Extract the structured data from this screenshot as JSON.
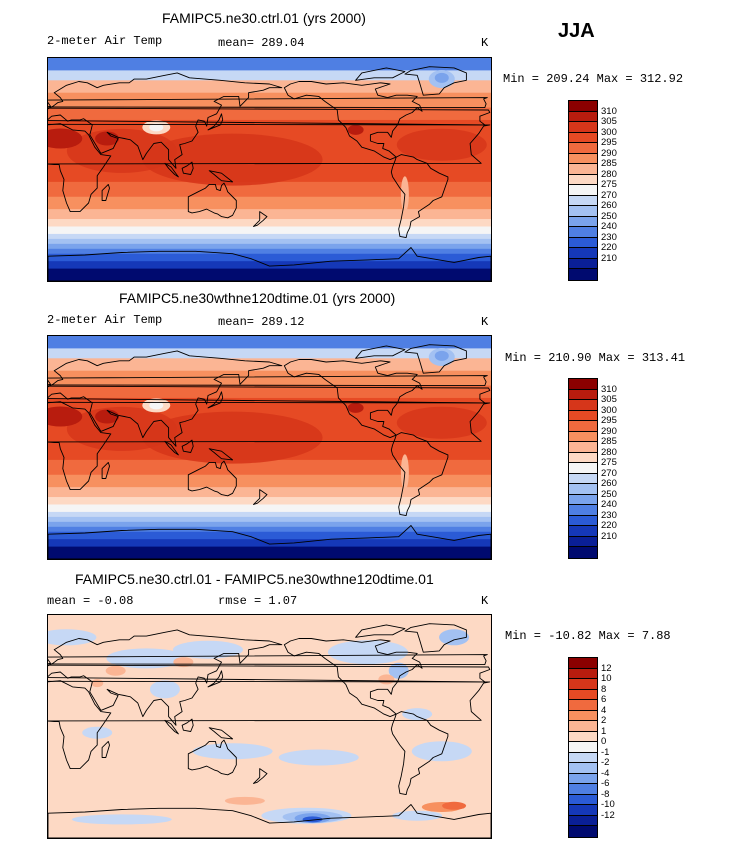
{
  "season": "JJA",
  "panels": [
    {
      "title": "FAMIPC5.ne30.ctrl.01 (yrs 2000)",
      "left_label": "2-meter Air Temp",
      "center_label": "mean=  289.04",
      "units": "K",
      "minmax": "Min = 209.24 Max = 312.92",
      "colorbar": {
        "colors": [
          "#8b0000",
          "#b81c0e",
          "#d6361a",
          "#e64a24",
          "#f06a3e",
          "#f7905f",
          "#fbb594",
          "#fdd9c4",
          "#f5f5f5",
          "#c6d8f5",
          "#a3c1f2",
          "#7aa3ec",
          "#4f7fe3",
          "#2b5bd6",
          "#1538b8",
          "#0a1f96",
          "#000a6f"
        ],
        "labels": [
          "310",
          "305",
          "300",
          "295",
          "290",
          "285",
          "280",
          "275",
          "270",
          "260",
          "250",
          "240",
          "230",
          "220",
          "210"
        ]
      },
      "map_kind": "abs"
    },
    {
      "title": "FAMIPC5.ne30wthne120dtime.01 (yrs 2000)",
      "left_label": "2-meter Air Temp",
      "center_label": "mean=  289.12",
      "units": "K",
      "minmax": "Min = 210.90 Max = 313.41",
      "colorbar": {
        "colors": [
          "#8b0000",
          "#b81c0e",
          "#d6361a",
          "#e64a24",
          "#f06a3e",
          "#f7905f",
          "#fbb594",
          "#fdd9c4",
          "#f5f5f5",
          "#c6d8f5",
          "#a3c1f2",
          "#7aa3ec",
          "#4f7fe3",
          "#2b5bd6",
          "#1538b8",
          "#0a1f96",
          "#000a6f"
        ],
        "labels": [
          "310",
          "305",
          "300",
          "295",
          "290",
          "285",
          "280",
          "275",
          "270",
          "260",
          "250",
          "240",
          "230",
          "220",
          "210"
        ]
      },
      "map_kind": "abs"
    },
    {
      "title": "FAMIPC5.ne30.ctrl.01 - FAMIPC5.ne30wthne120dtime.01",
      "left_label": "mean =   -0.08",
      "center_label": "rmse =    1.07",
      "units": "K",
      "minmax": "Min = -10.82 Max =   7.88",
      "colorbar": {
        "colors": [
          "#8b0000",
          "#b81c0e",
          "#d6361a",
          "#e64a24",
          "#f06a3e",
          "#f7905f",
          "#fbb594",
          "#fdd9c4",
          "#f5f5f5",
          "#c6d8f5",
          "#a3c1f2",
          "#7aa3ec",
          "#4f7fe3",
          "#2b5bd6",
          "#1538b8",
          "#0a1f96",
          "#000a6f"
        ],
        "labels": [
          "12",
          "10",
          "8",
          "6",
          "4",
          "2",
          "1",
          "0",
          "-1",
          "-2",
          "-4",
          "-6",
          "-8",
          "-10",
          "-12"
        ]
      },
      "map_kind": "diff"
    }
  ]
}
